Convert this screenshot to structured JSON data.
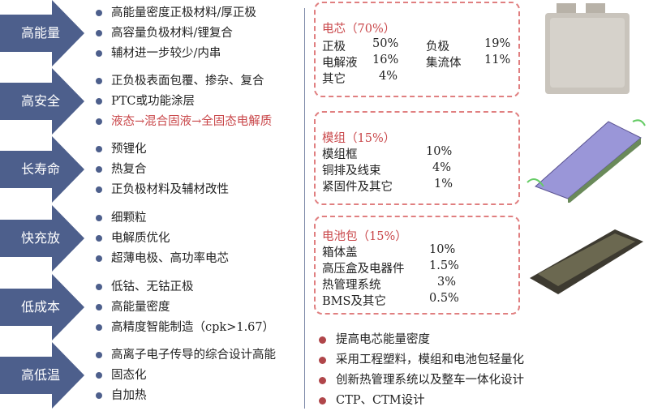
{
  "categories": [
    {
      "label": "高能量",
      "items": [
        "高能量密度正极材料/厚正极",
        "高容量负极材料/锂复合",
        "辅材进一步较少/内串"
      ]
    },
    {
      "label": "高安全",
      "items": [
        "正负极表面包覆、掺杂、复合",
        "PTC或功能涂层",
        "液态→混合固液→全固态电解质"
      ]
    },
    {
      "label": "长寿命",
      "items": [
        "预锂化",
        "热复合",
        "正负极材料及辅材改性"
      ]
    },
    {
      "label": "快充放",
      "items": [
        "细颗粒",
        "电解质优化",
        "超薄电极、高功率电芯"
      ]
    },
    {
      "label": "低成本",
      "items": [
        "低钴、无钴正极",
        "高能量密度",
        "高精度智能制造（cpk>1.67）"
      ]
    },
    {
      "label": "高低温",
      "items": [
        "高离子电子传导的综合设计高能",
        "固态化",
        "自加热"
      ]
    }
  ],
  "cell": {
    "title": "电芯（70%）",
    "rows": [
      [
        "正极",
        "50%",
        "负极",
        "19%"
      ],
      [
        "电解液",
        "16%",
        "集流体",
        "11%"
      ],
      [
        "其它",
        "4%"
      ]
    ]
  },
  "module": {
    "title": "模组（15%）",
    "rows": [
      [
        "模组框",
        "10%"
      ],
      [
        "铜排及线束",
        "4%"
      ],
      [
        "紧固件及其它",
        "1%"
      ]
    ]
  },
  "pack": {
    "title": "电池包（15%）",
    "rows": [
      [
        "箱体盖",
        "10%"
      ],
      [
        "高压盒及电器件",
        "1.5%"
      ],
      [
        "热管理系统",
        "3%"
      ],
      [
        "BMS及其它",
        "0.5%"
      ]
    ]
  },
  "measures": [
    "提高电芯能量密度",
    "采用工程塑料，模组和电池包轻量化",
    "创新热管理系统以及整车一体化设计",
    "CTP、CTM设计"
  ],
  "colors": {
    "arrow": "#4d5f8c",
    "highlight": "#c9474a",
    "dashed_border": "#e07f80"
  }
}
